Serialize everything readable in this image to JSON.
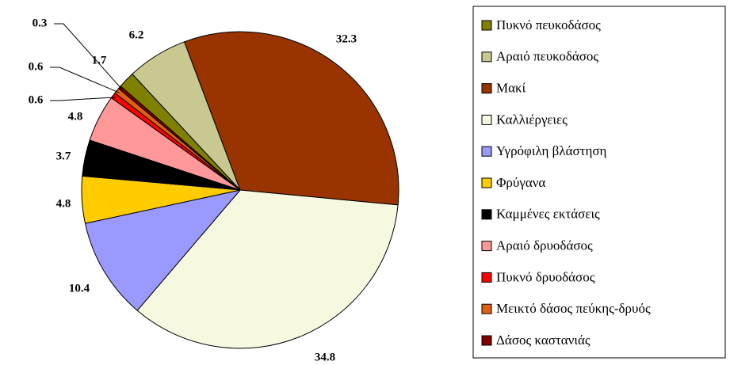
{
  "chart_data": {
    "type": "pie",
    "categories": [
      "Πυκνό πευκοδάσος",
      "Αραιό πευκοδάσος",
      "Μακί",
      "Καλλιέργειες",
      "Υγρόφιλη βλάστηση",
      "Φρύγανα",
      "Καμμένες εκτάσεις",
      "Αραιό δρυοδάσος",
      "Πυκνό δρυοδάσος",
      "Μεικτό δάσος πεύκης-δρυός",
      "Δάσος καστανιάς"
    ],
    "values": [
      1.7,
      6.2,
      32.3,
      34.8,
      10.4,
      4.8,
      3.7,
      4.8,
      0.6,
      0.6,
      0.3
    ],
    "colors": [
      "#808000",
      "#c8c890",
      "#993300",
      "#f6f9e0",
      "#9999ff",
      "#ffcc00",
      "#000000",
      "#ff9999",
      "#ff0000",
      "#e06010",
      "#800000"
    ],
    "legend": "right"
  }
}
